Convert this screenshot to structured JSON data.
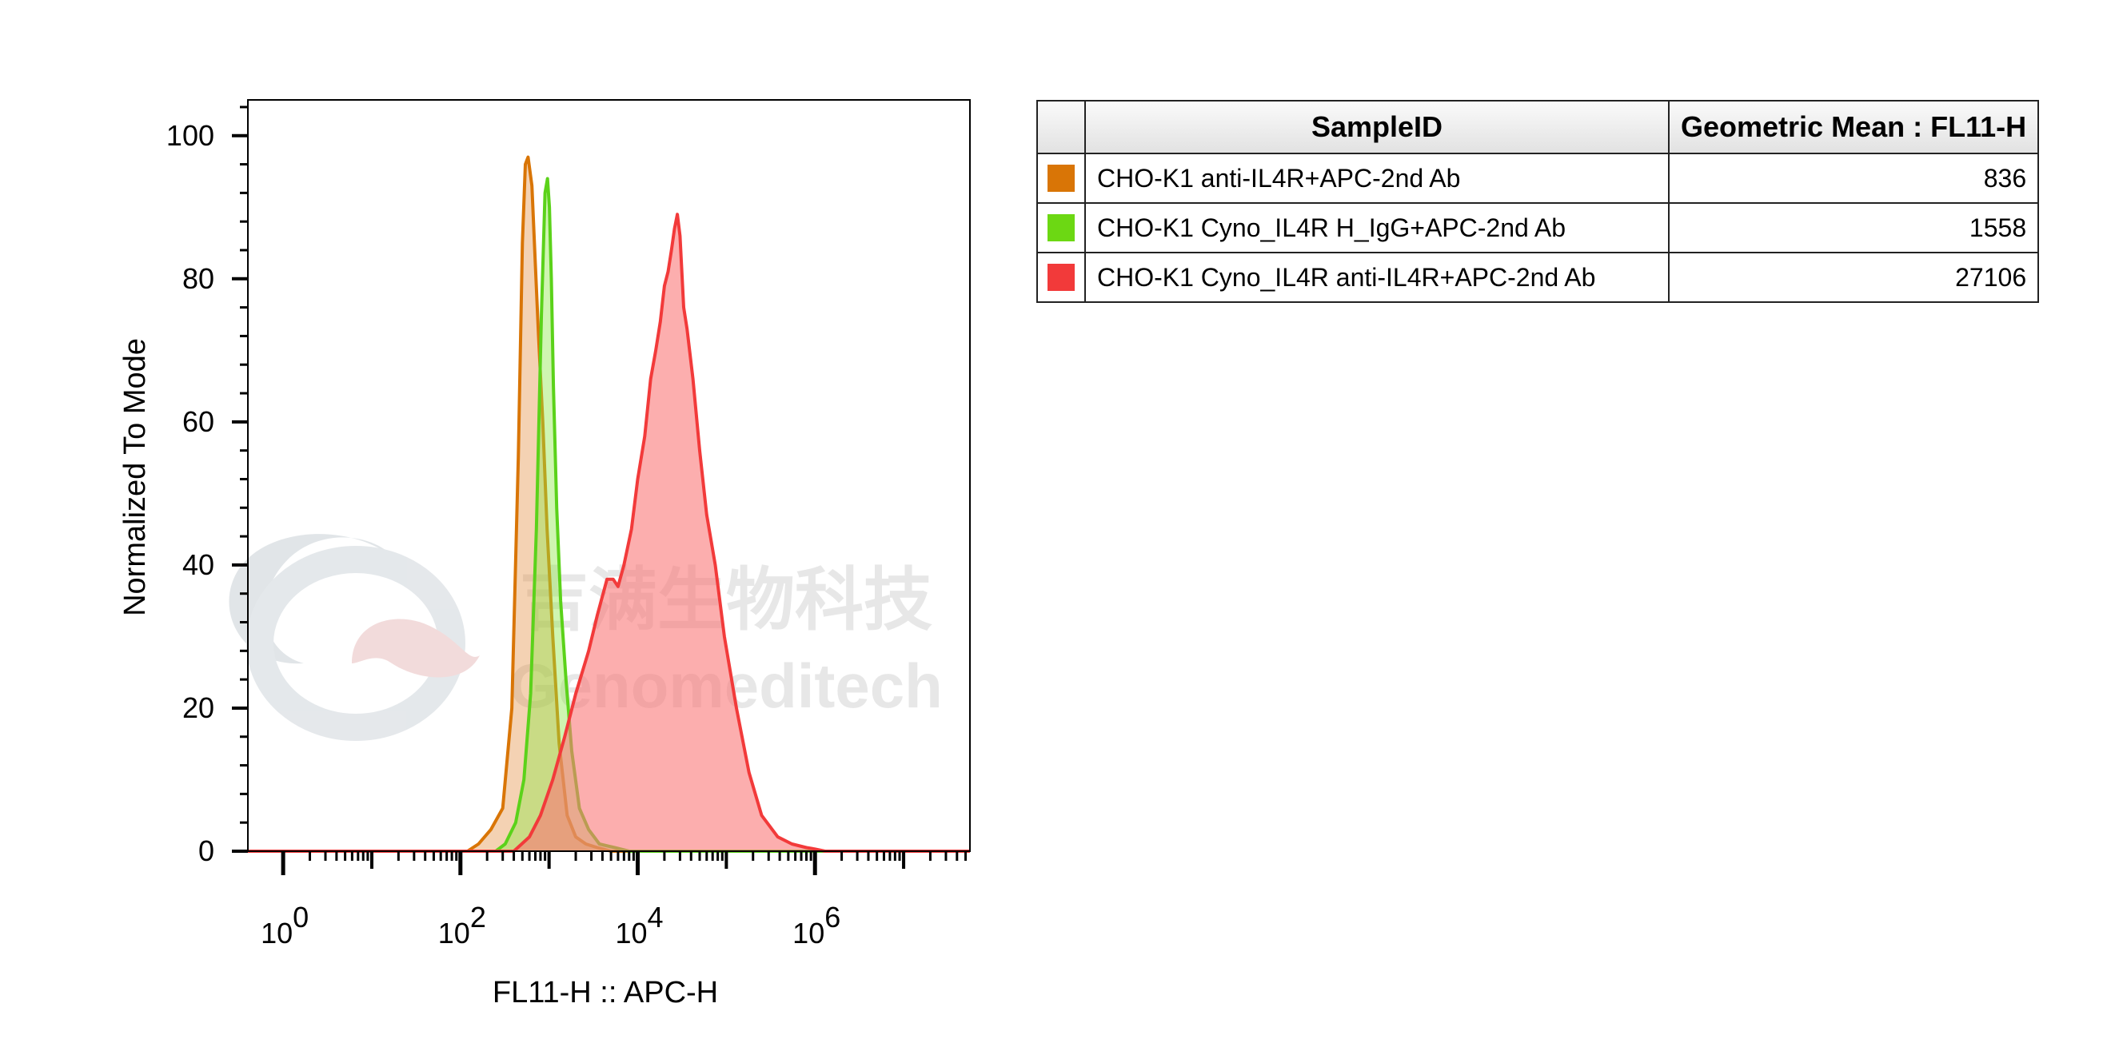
{
  "chart_data": {
    "type": "area",
    "title": "",
    "xlabel": "FL11-H :: APC-H",
    "ylabel": "Normalized To Mode",
    "x_scale": "log",
    "xlim": [
      0.4,
      56000000
    ],
    "ylim": [
      0,
      105
    ],
    "x_ticks": [
      {
        "base": "10",
        "exp": "0",
        "value": 1
      },
      {
        "base": "10",
        "exp": "2",
        "value": 100
      },
      {
        "base": "10",
        "exp": "4",
        "value": 10000
      },
      {
        "base": "10",
        "exp": "6",
        "value": 1000000
      }
    ],
    "y_ticks": [
      0,
      20,
      40,
      60,
      80,
      100
    ],
    "grid": false,
    "series": [
      {
        "name": "CHO-K1 anti-IL4R+APC-2nd Ab",
        "color": "#d97506",
        "fill": "rgba(226,138,56,0.38)",
        "x": [
          0.4,
          120,
          160,
          220,
          300,
          380,
          450,
          500,
          540,
          580,
          640,
          700,
          760,
          850,
          950,
          1100,
          1300,
          1600,
          2000,
          2600,
          3500,
          5000,
          56000000
        ],
        "y": [
          0,
          0,
          1,
          3,
          6,
          20,
          55,
          85,
          96,
          97,
          93,
          82,
          72,
          60,
          45,
          30,
          15,
          5,
          2,
          1,
          0.5,
          0,
          0
        ]
      },
      {
        "name": "CHO-K1 Cyno_IL4R H_IgG+APC-2nd Ab",
        "color": "#5bd21a",
        "fill": "rgba(140,230,70,0.42)",
        "x": [
          0.4,
          250,
          320,
          420,
          520,
          620,
          720,
          820,
          900,
          960,
          1010,
          1060,
          1120,
          1220,
          1350,
          1550,
          1800,
          2200,
          2800,
          3700,
          5500,
          8000,
          56000000
        ],
        "y": [
          0,
          0,
          1,
          4,
          10,
          22,
          45,
          75,
          92,
          94,
          90,
          80,
          65,
          48,
          35,
          24,
          14,
          6,
          3,
          1,
          0.5,
          0,
          0
        ]
      },
      {
        "name": "CHO-K1 Cyno_IL4R anti-IL4R+APC-2nd Ab",
        "color": "#f23a3a",
        "fill": "rgba(250,120,120,0.60)",
        "x": [
          0.4,
          400,
          600,
          800,
          1100,
          1500,
          2000,
          2800,
          3500,
          4500,
          5300,
          6000,
          7000,
          8500,
          10000,
          12000,
          14000,
          16000,
          18000,
          20000,
          22000,
          24000,
          26000,
          28000,
          30000,
          33000,
          36000,
          42000,
          50000,
          60000,
          75000,
          95000,
          130000,
          180000,
          250000,
          380000,
          550000,
          800000,
          1000000,
          1300000,
          56000000
        ],
        "y": [
          0,
          0,
          2,
          5,
          10,
          16,
          22,
          28,
          33,
          38,
          38,
          37,
          40,
          45,
          52,
          58,
          66,
          70,
          74,
          79,
          81,
          84,
          87,
          89,
          86,
          76,
          73,
          66,
          56,
          47,
          40,
          30,
          20,
          11,
          5,
          2,
          1,
          0.5,
          0.3,
          0,
          0
        ]
      }
    ]
  },
  "table": {
    "headers": [
      "SampleID",
      "Geometric Mean : FL11-H"
    ],
    "rows": [
      {
        "name": "CHO-K1 anti-IL4R+APC-2nd Ab",
        "value": "836",
        "color": "#d97506"
      },
      {
        "name": "CHO-K1 Cyno_IL4R H_IgG+APC-2nd Ab",
        "value": "1558",
        "color": "#6cd813"
      },
      {
        "name": "CHO-K1 Cyno_IL4R anti-IL4R+APC-2nd Ab",
        "value": "27106",
        "color": "#f23a3a"
      }
    ]
  },
  "watermark": {
    "cn": "吉满生物科技",
    "en": "Genomeditech"
  }
}
